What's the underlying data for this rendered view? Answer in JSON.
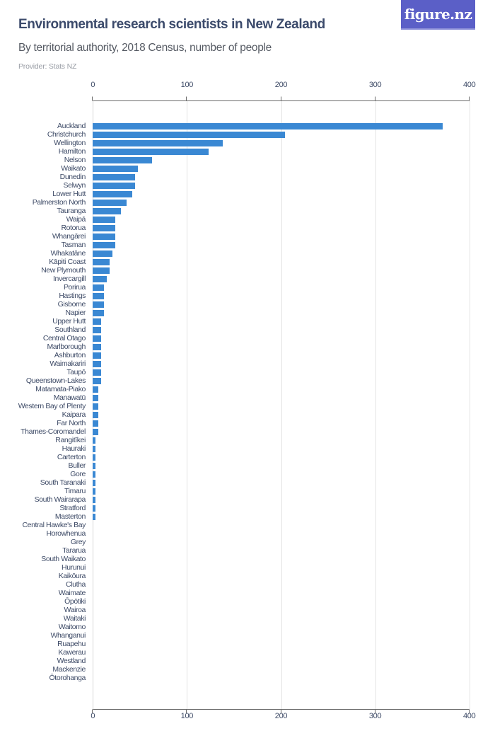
{
  "header": {
    "title": "Environmental research scientists in New Zealand",
    "subtitle": "By territorial authority, 2018 Census, number of people",
    "provider": "Provider: Stats NZ",
    "logo_text": "figure.nz"
  },
  "colors": {
    "bar": "#3a88d3",
    "logo_bg": "#5b5fc7",
    "title": "#3b4a6b"
  },
  "chart_data": {
    "type": "bar",
    "orientation": "horizontal",
    "title": "Environmental research scientists in New Zealand",
    "subtitle": "By territorial authority, 2018 Census, number of people",
    "xlabel": "",
    "ylabel": "",
    "xlim": [
      0,
      400
    ],
    "ticks": [
      0,
      100,
      200,
      300,
      400
    ],
    "tick_labels": [
      "0",
      "100",
      "200",
      "300",
      "400"
    ],
    "grid": true,
    "legend": null,
    "categories": [
      "Auckland",
      "Christchurch",
      "Wellington",
      "Hamilton",
      "Nelson",
      "Waikato",
      "Dunedin",
      "Selwyn",
      "Lower Hutt",
      "Palmerston North",
      "Tauranga",
      "Waipā",
      "Rotorua",
      "Whangārei",
      "Tasman",
      "Whakatāne",
      "Kāpiti Coast",
      "New Plymouth",
      "Invercargill",
      "Porirua",
      "Hastings",
      "Gisborne",
      "Napier",
      "Upper Hutt",
      "Southland",
      "Central Otago",
      "Marlborough",
      "Ashburton",
      "Waimakariri",
      "Taupō",
      "Queenstown-Lakes",
      "Matamata-Piako",
      "Manawatū",
      "Western Bay of Plenty",
      "Kaipara",
      "Far North",
      "Thames-Coromandel",
      "Rangitīkei",
      "Hauraki",
      "Carterton",
      "Buller",
      "Gore",
      "South Taranaki",
      "Timaru",
      "South Wairarapa",
      "Stratford",
      "Masterton",
      "Central Hawke's Bay",
      "Horowhenua",
      "Grey",
      "Tararua",
      "South Waikato",
      "Hurunui",
      "Kaikōura",
      "Clutha",
      "Waimate",
      "Ōpōtiki",
      "Wairoa",
      "Waitaki",
      "Waitomo",
      "Whanganui",
      "Ruapehu",
      "Kawerau",
      "Westland",
      "Mackenzie",
      "Ōtorohanga"
    ],
    "values": [
      372,
      204,
      138,
      123,
      63,
      48,
      45,
      45,
      42,
      36,
      30,
      24,
      24,
      24,
      24,
      21,
      18,
      18,
      15,
      12,
      12,
      12,
      12,
      9,
      9,
      9,
      9,
      9,
      9,
      9,
      9,
      6,
      6,
      6,
      6,
      6,
      6,
      3,
      3,
      3,
      3,
      3,
      3,
      3,
      3,
      3,
      3,
      0,
      0,
      0,
      0,
      0,
      0,
      0,
      0,
      0,
      0,
      0,
      0,
      0,
      0,
      0,
      0,
      0,
      0,
      0
    ]
  }
}
